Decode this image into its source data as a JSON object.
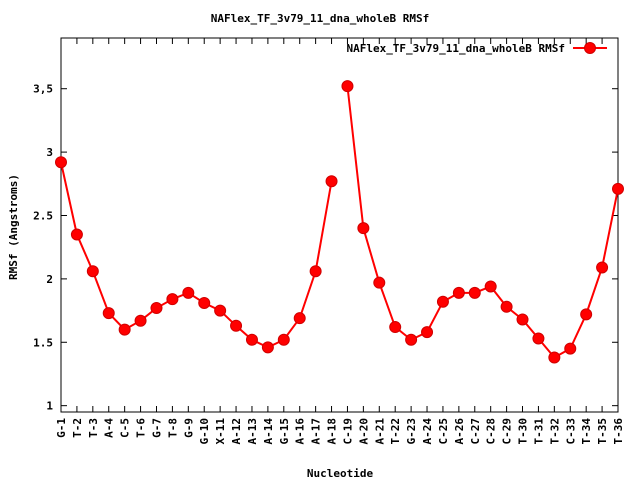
{
  "chart_data": {
    "type": "line",
    "title": "NAFlex_TF_3v79_11_dna_wholeB RMSf",
    "xlabel": "Nucleotide",
    "ylabel": "RMSf (Angstroms)",
    "ylim": [
      0.95,
      3.9
    ],
    "yticks": [
      "1",
      "1.5",
      "2",
      "2.5",
      "3",
      "3,5"
    ],
    "ytick_values": [
      1,
      1.5,
      2,
      2.5,
      3,
      3.5
    ],
    "legend_position": "top-right",
    "categories": [
      "G-1",
      "T-2",
      "T-3",
      "A-4",
      "C-5",
      "T-6",
      "G-7",
      "T-8",
      "G-9",
      "G-10",
      "X-11",
      "A-12",
      "A-13",
      "A-14",
      "G-15",
      "A-16",
      "A-17",
      "A-18",
      "C-19",
      "A-20",
      "A-21",
      "T-22",
      "G-23",
      "A-24",
      "C-25",
      "A-26",
      "C-27",
      "C-28",
      "C-29",
      "T-30",
      "T-31",
      "T-32",
      "C-33",
      "T-34",
      "T-35",
      "T-36"
    ],
    "series": [
      {
        "name": "NAFlex_TF_3v79_11_dna_wholeB RMSf",
        "color": "#ff0000",
        "segments": [
          {
            "x": [
              "G-1",
              "T-2",
              "T-3",
              "A-4",
              "C-5",
              "T-6",
              "G-7",
              "T-8",
              "G-9",
              "G-10",
              "X-11",
              "A-12",
              "A-13",
              "A-14",
              "G-15",
              "A-16",
              "A-17",
              "A-18"
            ],
            "values": [
              2.92,
              2.35,
              2.06,
              1.73,
              1.6,
              1.67,
              1.77,
              1.84,
              1.89,
              1.81,
              1.75,
              1.63,
              1.52,
              1.46,
              1.52,
              1.69,
              2.06,
              2.77
            ]
          },
          {
            "x": [
              "C-19",
              "A-20",
              "A-21",
              "T-22",
              "G-23",
              "A-24",
              "C-25",
              "A-26",
              "C-27",
              "C-28",
              "C-29",
              "T-30",
              "T-31",
              "T-32",
              "C-33",
              "T-34",
              "T-35",
              "T-36"
            ],
            "values": [
              3.52,
              2.4,
              1.97,
              1.62,
              1.52,
              1.58,
              1.82,
              1.89,
              1.89,
              1.94,
              1.78,
              1.68,
              1.53,
              1.38,
              1.45,
              1.72,
              2.09,
              2.71
            ]
          }
        ]
      }
    ]
  }
}
